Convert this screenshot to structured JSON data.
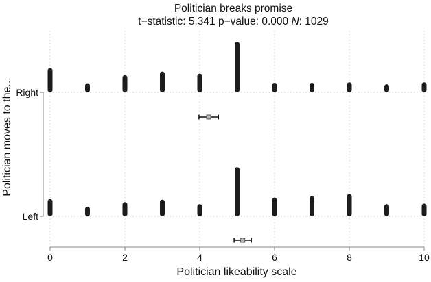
{
  "chart_data": {
    "type": "strip",
    "title": "Politician breaks promise",
    "subtitle": {
      "t_label": "t−statistic:",
      "t_value": "5.341",
      "p_label": "p−value:",
      "p_value": "0.000",
      "n_label": "N",
      "n_sep": ":",
      "n_value": "1029"
    },
    "xlabel": "Politician likeability scale",
    "ylabel": "Politician moves to the...",
    "x_ticks": [
      0,
      2,
      4,
      6,
      8,
      10
    ],
    "xlim": [
      0,
      10
    ],
    "grid": true,
    "groups": [
      {
        "label": "Right",
        "bars": [
          {
            "x": 0,
            "height": 0.48
          },
          {
            "x": 1,
            "height": 0.18
          },
          {
            "x": 2,
            "height": 0.34
          },
          {
            "x": 3,
            "height": 0.41
          },
          {
            "x": 4,
            "height": 0.37
          },
          {
            "x": 5,
            "height": 1.0
          },
          {
            "x": 6,
            "height": 0.19
          },
          {
            "x": 7,
            "height": 0.19
          },
          {
            "x": 8,
            "height": 0.2
          },
          {
            "x": 9,
            "height": 0.16
          },
          {
            "x": 10,
            "height": 0.2
          }
        ],
        "mean": 4.24,
        "ci": [
          3.98,
          4.5
        ]
      },
      {
        "label": "Left",
        "bars": [
          {
            "x": 0,
            "height": 0.34
          },
          {
            "x": 1,
            "height": 0.19
          },
          {
            "x": 2,
            "height": 0.28
          },
          {
            "x": 3,
            "height": 0.33
          },
          {
            "x": 4,
            "height": 0.24
          },
          {
            "x": 5,
            "height": 0.97
          },
          {
            "x": 6,
            "height": 0.37
          },
          {
            "x": 7,
            "height": 0.4
          },
          {
            "x": 8,
            "height": 0.44
          },
          {
            "x": 9,
            "height": 0.24
          },
          {
            "x": 10,
            "height": 0.25
          }
        ],
        "mean": 5.15,
        "ci": [
          4.92,
          5.38
        ]
      }
    ],
    "colors": {
      "bar": "#1c1c1c",
      "grid": "#cfcfcf",
      "axis": "#8a8a8a",
      "mean_fill": "#bdbdbd",
      "ci": "#111111"
    }
  }
}
